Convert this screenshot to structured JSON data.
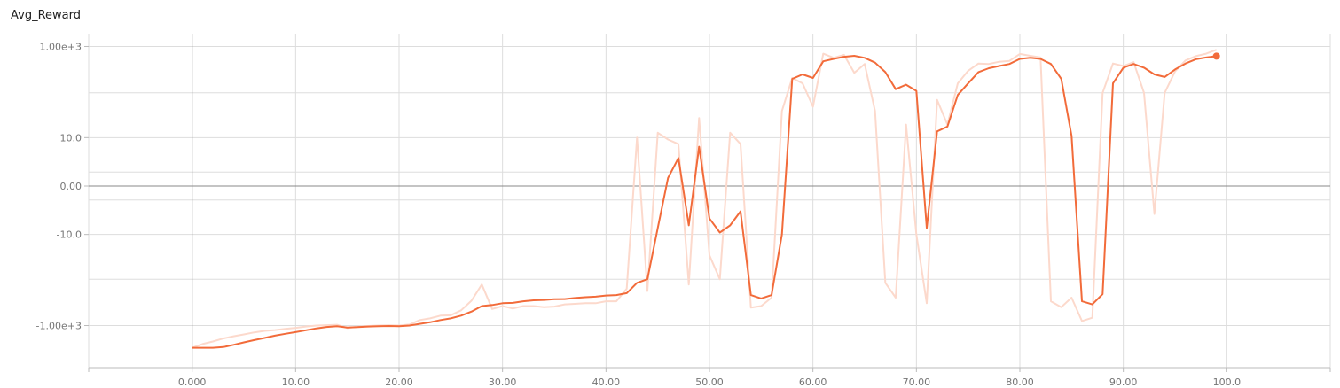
{
  "chart_data": {
    "type": "line",
    "title": "Avg_Reward",
    "xlabel": "",
    "ylabel": "",
    "xlim": [
      -10,
      110
    ],
    "x_ticks": [
      "0.000",
      "10.00",
      "20.00",
      "30.00",
      "40.00",
      "50.00",
      "60.00",
      "70.00",
      "80.00",
      "90.00",
      "100.0"
    ],
    "y_ticks": [
      "1.00e+3",
      "10.0",
      "0.00",
      "-10.0",
      "-1.00e+3"
    ],
    "y_scale": "symlog",
    "ylim": [
      -3000,
      3000
    ],
    "grid": true,
    "colors": {
      "smoothed": "#f26b3a",
      "raw": "#fcd9cc",
      "grid": "#dddddd",
      "axis_zero": "#888888"
    },
    "series": [
      {
        "role": "raw",
        "x": [
          0,
          1,
          2,
          3,
          4,
          5,
          6,
          7,
          8,
          9,
          10,
          11,
          12,
          13,
          14,
          15,
          16,
          17,
          18,
          19,
          20,
          21,
          22,
          23,
          24,
          25,
          26,
          27,
          28,
          29,
          30,
          31,
          32,
          33,
          34,
          35,
          36,
          37,
          38,
          39,
          40,
          41,
          42,
          43,
          44,
          45,
          46,
          47,
          48,
          49,
          50,
          51,
          52,
          53,
          54,
          55,
          56,
          57,
          58,
          59,
          60,
          61,
          62,
          63,
          64,
          65,
          66,
          67,
          68,
          69,
          70,
          71,
          72,
          73,
          74,
          75,
          76,
          77,
          78,
          79,
          80,
          81,
          82,
          83,
          84,
          85,
          86,
          87,
          88,
          89,
          90,
          91,
          92,
          93,
          94,
          95,
          96,
          97,
          98,
          99
        ],
        "y": [
          -3000,
          -2500,
          -2200,
          -1900,
          -1700,
          -1550,
          -1400,
          -1300,
          -1250,
          -1180,
          -1120,
          -1050,
          -1000,
          -980,
          -960,
          -1130,
          -1060,
          -1020,
          -1000,
          -990,
          -1000,
          -950,
          -760,
          -700,
          -610,
          -600,
          -470,
          -290,
          -130,
          -440,
          -380,
          -430,
          -380,
          -380,
          -400,
          -390,
          -350,
          -340,
          -330,
          -330,
          -300,
          -300,
          -160,
          10,
          -180,
          13,
          9,
          7,
          -130,
          28,
          -30,
          -100,
          13,
          7,
          -410,
          -380,
          -250,
          40,
          210,
          160,
          50,
          700,
          570,
          660,
          270,
          420,
          40,
          -120,
          -250,
          20,
          -10,
          -330,
          70,
          20,
          160,
          300,
          430,
          420,
          470,
          490,
          690,
          630,
          580,
          -300,
          -400,
          -250,
          -800,
          -680,
          100,
          430,
          380,
          460,
          100,
          -3,
          100,
          290,
          500,
          620,
          700,
          850
        ]
      },
      {
        "role": "smoothed",
        "x": [
          0,
          1,
          2,
          3,
          4,
          5,
          6,
          7,
          8,
          9,
          10,
          11,
          12,
          13,
          14,
          15,
          16,
          17,
          18,
          19,
          20,
          21,
          22,
          23,
          24,
          25,
          26,
          27,
          28,
          29,
          30,
          31,
          32,
          33,
          34,
          35,
          36,
          37,
          38,
          39,
          40,
          41,
          42,
          43,
          44,
          45,
          46,
          47,
          48,
          49,
          50,
          51,
          52,
          53,
          54,
          55,
          56,
          57,
          58,
          59,
          60,
          61,
          62,
          63,
          64,
          65,
          66,
          67,
          68,
          69,
          70,
          71,
          72,
          73,
          74,
          75,
          76,
          77,
          78,
          79,
          80,
          81,
          82,
          83,
          84,
          85,
          86,
          87,
          88,
          89,
          90,
          91,
          92,
          93,
          94,
          95,
          96,
          97,
          98,
          99
        ],
        "y": [
          -3000,
          -3000,
          -3000,
          -2900,
          -2600,
          -2300,
          -2050,
          -1850,
          -1650,
          -1500,
          -1380,
          -1260,
          -1150,
          -1070,
          -1030,
          -1100,
          -1080,
          -1050,
          -1030,
          -1020,
          -1030,
          -1000,
          -920,
          -850,
          -760,
          -700,
          -610,
          -500,
          -380,
          -360,
          -330,
          -325,
          -300,
          -285,
          -280,
          -270,
          -268,
          -255,
          -245,
          -238,
          -225,
          -220,
          -200,
          -120,
          -100,
          -7,
          0.5,
          3,
          -6,
          6,
          -4,
          -9,
          -6,
          -2.5,
          -220,
          -260,
          -220,
          -10,
          200,
          250,
          210,
          480,
          540,
          600,
          630,
          570,
          450,
          280,
          120,
          150,
          110,
          -7,
          14,
          18,
          90,
          160,
          280,
          340,
          380,
          420,
          540,
          570,
          540,
          420,
          200,
          11,
          -300,
          -350,
          -210,
          160,
          350,
          420,
          350,
          250,
          220,
          320,
          430,
          530,
          580,
          620
        ]
      }
    ]
  }
}
